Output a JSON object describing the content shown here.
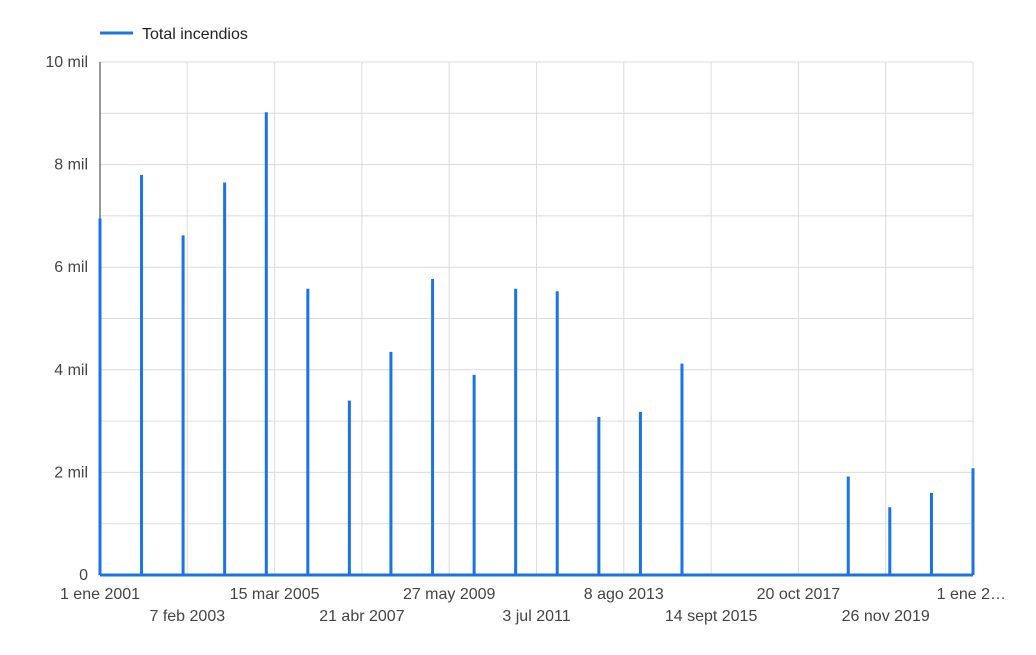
{
  "chart_data": {
    "type": "line",
    "series": [
      {
        "name": "Total incendios",
        "color": "#1a73e8",
        "spikes": [
          {
            "date": "2001-01-01",
            "value": 6950
          },
          {
            "date": "2002-01-01",
            "value": 7800
          },
          {
            "date": "2003-01-01",
            "value": 6620
          },
          {
            "date": "2004-01-01",
            "value": 7650
          },
          {
            "date": "2005-01-01",
            "value": 9020
          },
          {
            "date": "2006-01-01",
            "value": 5580
          },
          {
            "date": "2007-01-01",
            "value": 3400
          },
          {
            "date": "2008-01-01",
            "value": 4350
          },
          {
            "date": "2009-01-01",
            "value": 5770
          },
          {
            "date": "2010-01-01",
            "value": 3900
          },
          {
            "date": "2011-01-01",
            "value": 5580
          },
          {
            "date": "2012-01-01",
            "value": 5530
          },
          {
            "date": "2013-01-01",
            "value": 3080
          },
          {
            "date": "2014-01-01",
            "value": 3180
          },
          {
            "date": "2015-01-01",
            "value": 4120
          },
          {
            "date": "2019-01-01",
            "value": 1920
          },
          {
            "date": "2020-01-01",
            "value": 1320
          },
          {
            "date": "2021-01-01",
            "value": 1600
          },
          {
            "date": "2022-01-01",
            "value": 2080
          }
        ],
        "baseline": 0
      }
    ],
    "x_range": [
      "2001-01-01",
      "2022-01-01"
    ],
    "ylim": [
      0,
      10000
    ],
    "y_ticks": [
      {
        "value": 0,
        "label": "0"
      },
      {
        "value": 2000,
        "label": "2 mil"
      },
      {
        "value": 4000,
        "label": "4 mil"
      },
      {
        "value": 6000,
        "label": "6 mil"
      },
      {
        "value": 8000,
        "label": "8 mil"
      },
      {
        "value": 10000,
        "label": "10 mil"
      }
    ],
    "x_ticks": [
      {
        "date": "2001-01-01",
        "label": "1 ene 2001",
        "row": 1
      },
      {
        "date": "2003-02-07",
        "label": "7 feb 2003",
        "row": 2
      },
      {
        "date": "2005-03-15",
        "label": "15 mar 2005",
        "row": 1
      },
      {
        "date": "2007-04-21",
        "label": "21 abr 2007",
        "row": 2
      },
      {
        "date": "2009-05-27",
        "label": "27 may 2009",
        "row": 1
      },
      {
        "date": "2011-07-03",
        "label": "3 jul 2011",
        "row": 2
      },
      {
        "date": "2013-08-08",
        "label": "8 ago 2013",
        "row": 1
      },
      {
        "date": "2015-09-14",
        "label": "14 sept 2015",
        "row": 2
      },
      {
        "date": "2017-10-20",
        "label": "20 oct 2017",
        "row": 1
      },
      {
        "date": "2019-11-26",
        "label": "26 nov 2019",
        "row": 2
      },
      {
        "date": "2022-01-01",
        "label": "1 ene 2…",
        "row": 1
      }
    ],
    "grid": true,
    "legend_position": "top-left",
    "title": "",
    "xlabel": "",
    "ylabel": ""
  }
}
